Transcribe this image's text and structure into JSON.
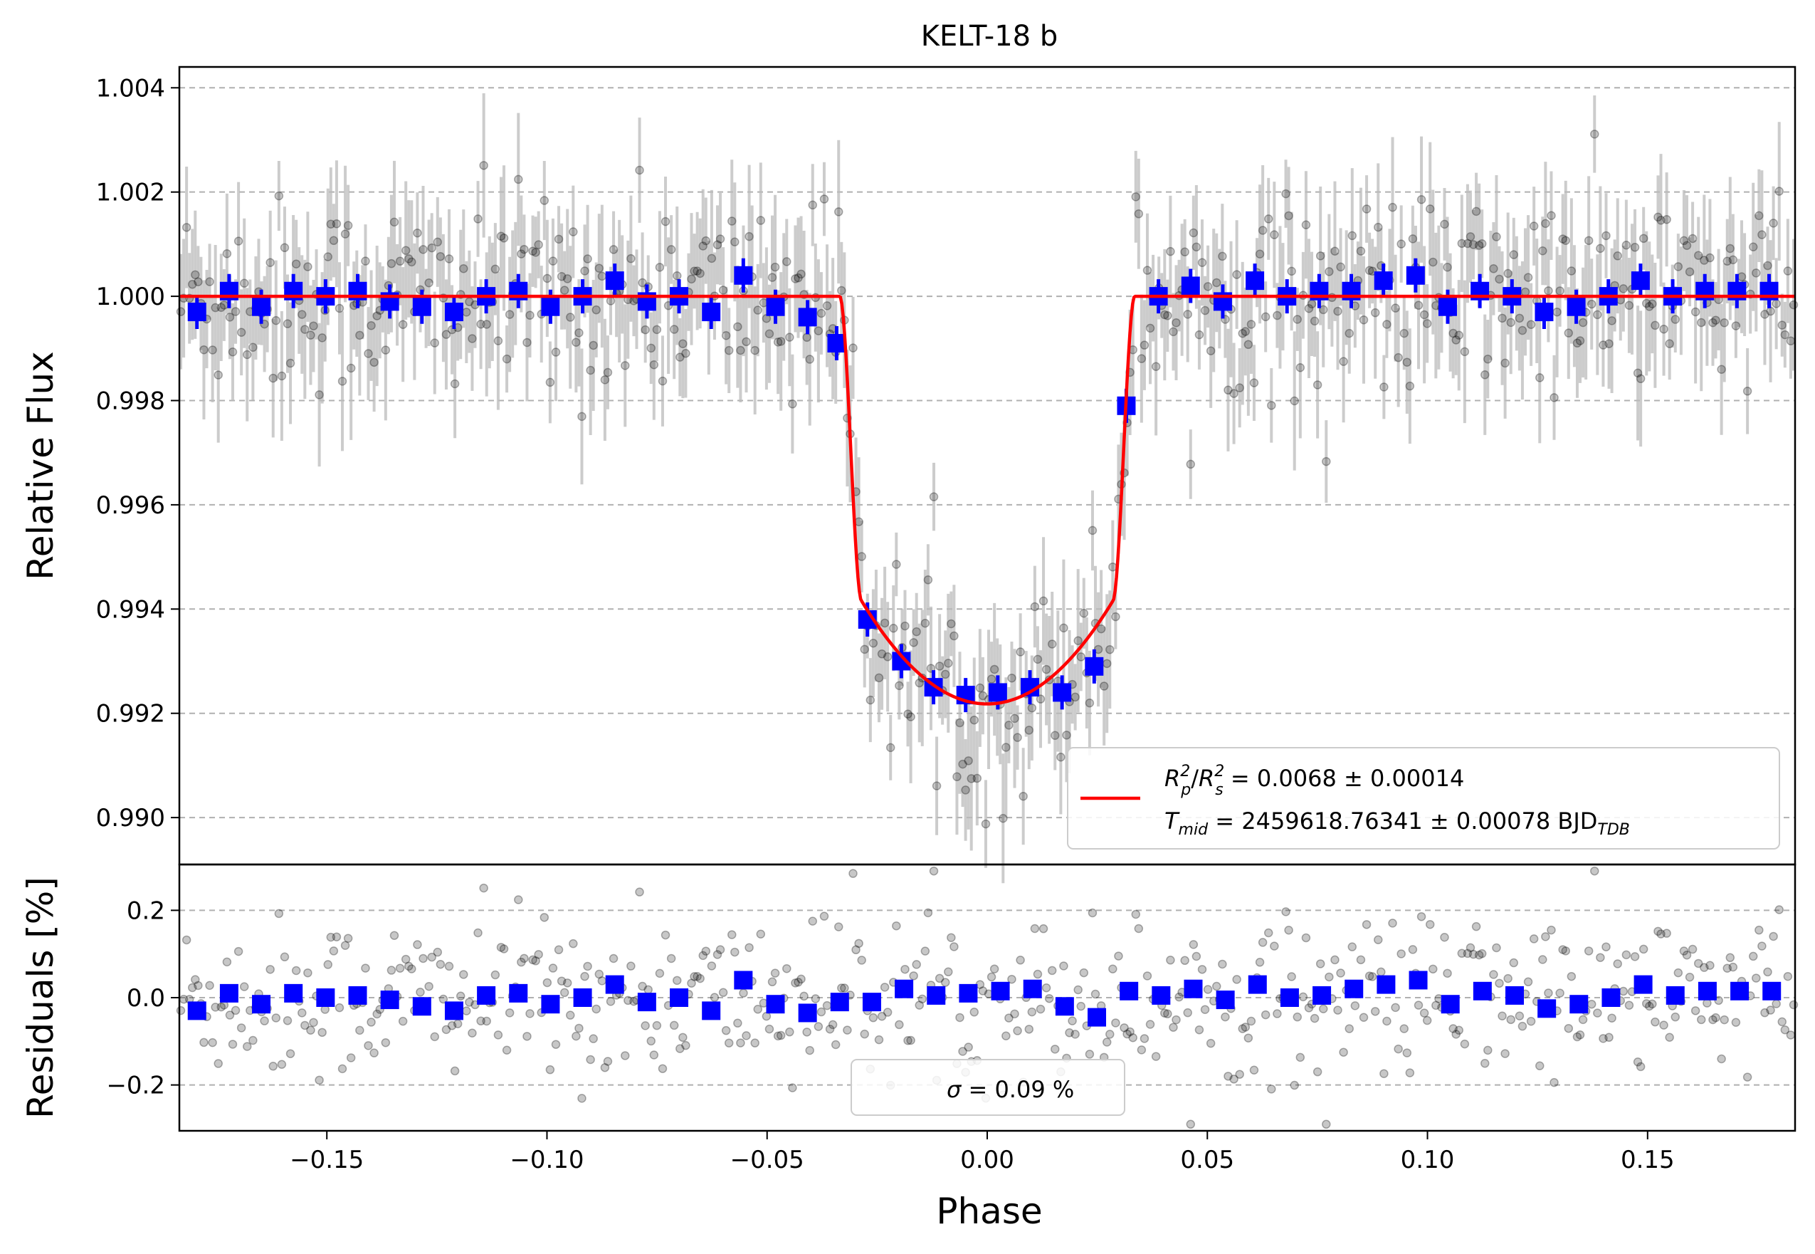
{
  "chart_data": [
    {
      "type": "scatter",
      "panel": "main",
      "title": "KELT-18 b",
      "xlabel": "",
      "ylabel": "Relative Flux",
      "xlim": [
        -0.1835,
        0.1835
      ],
      "ylim": [
        0.9891,
        1.0044
      ],
      "grid": "horizontal dashed",
      "yticks": [
        0.99,
        0.992,
        0.994,
        0.996,
        0.998,
        1.0,
        1.002,
        1.004
      ],
      "ytick_labels": [
        "0.990",
        "0.992",
        "0.994",
        "0.996",
        "0.998",
        "1.000",
        "1.002",
        "1.004"
      ],
      "model": {
        "color": "#ff0000",
        "baseline": 1.0,
        "ingress_start": -0.0335,
        "full_start": -0.0285,
        "full_end": 0.0285,
        "egress_end": 0.0335,
        "center_flux": 0.99218,
        "edge_flux": 0.99415
      },
      "binned": {
        "color": "#0000ff",
        "x": [
          -0.1795,
          -0.1722,
          -0.1649,
          -0.1576,
          -0.1503,
          -0.143,
          -0.1357,
          -0.1284,
          -0.1211,
          -0.1138,
          -0.1065,
          -0.0992,
          -0.0919,
          -0.0846,
          -0.0773,
          -0.07,
          -0.0627,
          -0.0554,
          -0.0481,
          -0.0408,
          -0.0342,
          -0.0272,
          -0.0195,
          -0.0122,
          -0.0049,
          0.0024,
          0.0097,
          0.017,
          0.0243,
          0.0316,
          0.0389,
          0.0462,
          0.0535,
          0.0608,
          0.0681,
          0.0754,
          0.0827,
          0.09,
          0.0973,
          0.1046,
          0.1119,
          0.1192,
          0.1265,
          0.1338,
          0.1411,
          0.1484,
          0.1557,
          0.163,
          0.1703,
          0.1776
        ],
        "y": [
          0.9997,
          1.0001,
          0.9998,
          1.0001,
          1.0,
          1.0001,
          0.9999,
          0.9998,
          0.9997,
          1.0,
          1.0001,
          0.9998,
          1.0,
          1.0003,
          0.9999,
          1.0,
          0.9997,
          1.0004,
          0.9998,
          0.9996,
          0.9991,
          0.9938,
          0.993,
          0.9925,
          0.99235,
          0.9924,
          0.9925,
          0.9924,
          0.9929,
          0.9979,
          1.0,
          1.0002,
          0.9999,
          1.0003,
          1.0,
          1.0001,
          1.0001,
          1.0003,
          1.0004,
          0.9998,
          1.0001,
          1.0,
          0.9997,
          0.9998,
          1.0,
          1.0003,
          1.0,
          1.0001,
          1.0001,
          1.0001
        ]
      },
      "raw_points": {
        "color": "#000000",
        "scatter_sigma": 0.00095,
        "n": 560,
        "errorbar_color": "#bbbbbb"
      },
      "legend": {
        "placement": "lower-right",
        "line1_a": "R",
        "line1_a_sub": "p",
        "line1_a_sup": "2",
        "line1_slash": "/",
        "line1_b": "R",
        "line1_b_sub": "s",
        "line1_b_sup": "2",
        "line1_value": " = 0.0068 ± 0.00014",
        "line2_var": "T",
        "line2_var_sub": "mid",
        "line2_value": " = 2459618.76341 ± 0.00078 BJD",
        "line2_unit_sub": "TDB"
      }
    },
    {
      "type": "scatter",
      "panel": "residuals",
      "xlabel": "Phase",
      "ylabel": "Residuals [%]",
      "xlim": [
        -0.1835,
        0.1835
      ],
      "ylim": [
        -0.305,
        0.305
      ],
      "grid": "horizontal dashed",
      "xticks": [
        -0.15,
        -0.1,
        -0.05,
        0.0,
        0.05,
        0.1,
        0.15
      ],
      "xtick_labels": [
        "−0.15",
        "−0.10",
        "−0.05",
        "0.00",
        "0.05",
        "0.10",
        "0.15"
      ],
      "yticks": [
        -0.2,
        0.0,
        0.2
      ],
      "ytick_labels": [
        "−0.2",
        "0.0",
        "0.2"
      ],
      "binned": {
        "color": "#0000ff",
        "x": [
          -0.1795,
          -0.1722,
          -0.1649,
          -0.1576,
          -0.1503,
          -0.143,
          -0.1357,
          -0.1284,
          -0.1211,
          -0.1138,
          -0.1065,
          -0.0992,
          -0.0919,
          -0.0846,
          -0.0773,
          -0.07,
          -0.0627,
          -0.0554,
          -0.0481,
          -0.0408,
          -0.0335,
          -0.0262,
          -0.0189,
          -0.0116,
          -0.0043,
          0.003,
          0.0103,
          0.0176,
          0.0249,
          0.0322,
          0.0395,
          0.0468,
          0.0541,
          0.0614,
          0.0687,
          0.076,
          0.0833,
          0.0906,
          0.0979,
          0.1052,
          0.1125,
          0.1198,
          0.1271,
          0.1344,
          0.1417,
          0.149,
          0.1563,
          0.1636,
          0.1709,
          0.1782
        ],
        "y": [
          -0.03,
          0.01,
          -0.015,
          0.01,
          0.0,
          0.005,
          -0.005,
          -0.02,
          -0.03,
          0.005,
          0.01,
          -0.015,
          0.0,
          0.03,
          -0.01,
          0.0,
          -0.03,
          0.04,
          -0.015,
          -0.035,
          -0.01,
          -0.01,
          0.02,
          0.005,
          0.01,
          0.015,
          0.02,
          -0.02,
          -0.045,
          0.015,
          0.005,
          0.02,
          -0.005,
          0.03,
          0.0,
          0.005,
          0.02,
          0.03,
          0.04,
          -0.015,
          0.015,
          0.005,
          -0.025,
          -0.015,
          0.0,
          0.03,
          0.005,
          0.015,
          0.015,
          0.015
        ]
      },
      "raw_points": {
        "color": "#000000",
        "scatter_sigma": 0.095,
        "n": 560
      },
      "legend": {
        "placement": "lower-center",
        "var": "σ",
        "value": " = 0.09 %"
      }
    }
  ]
}
